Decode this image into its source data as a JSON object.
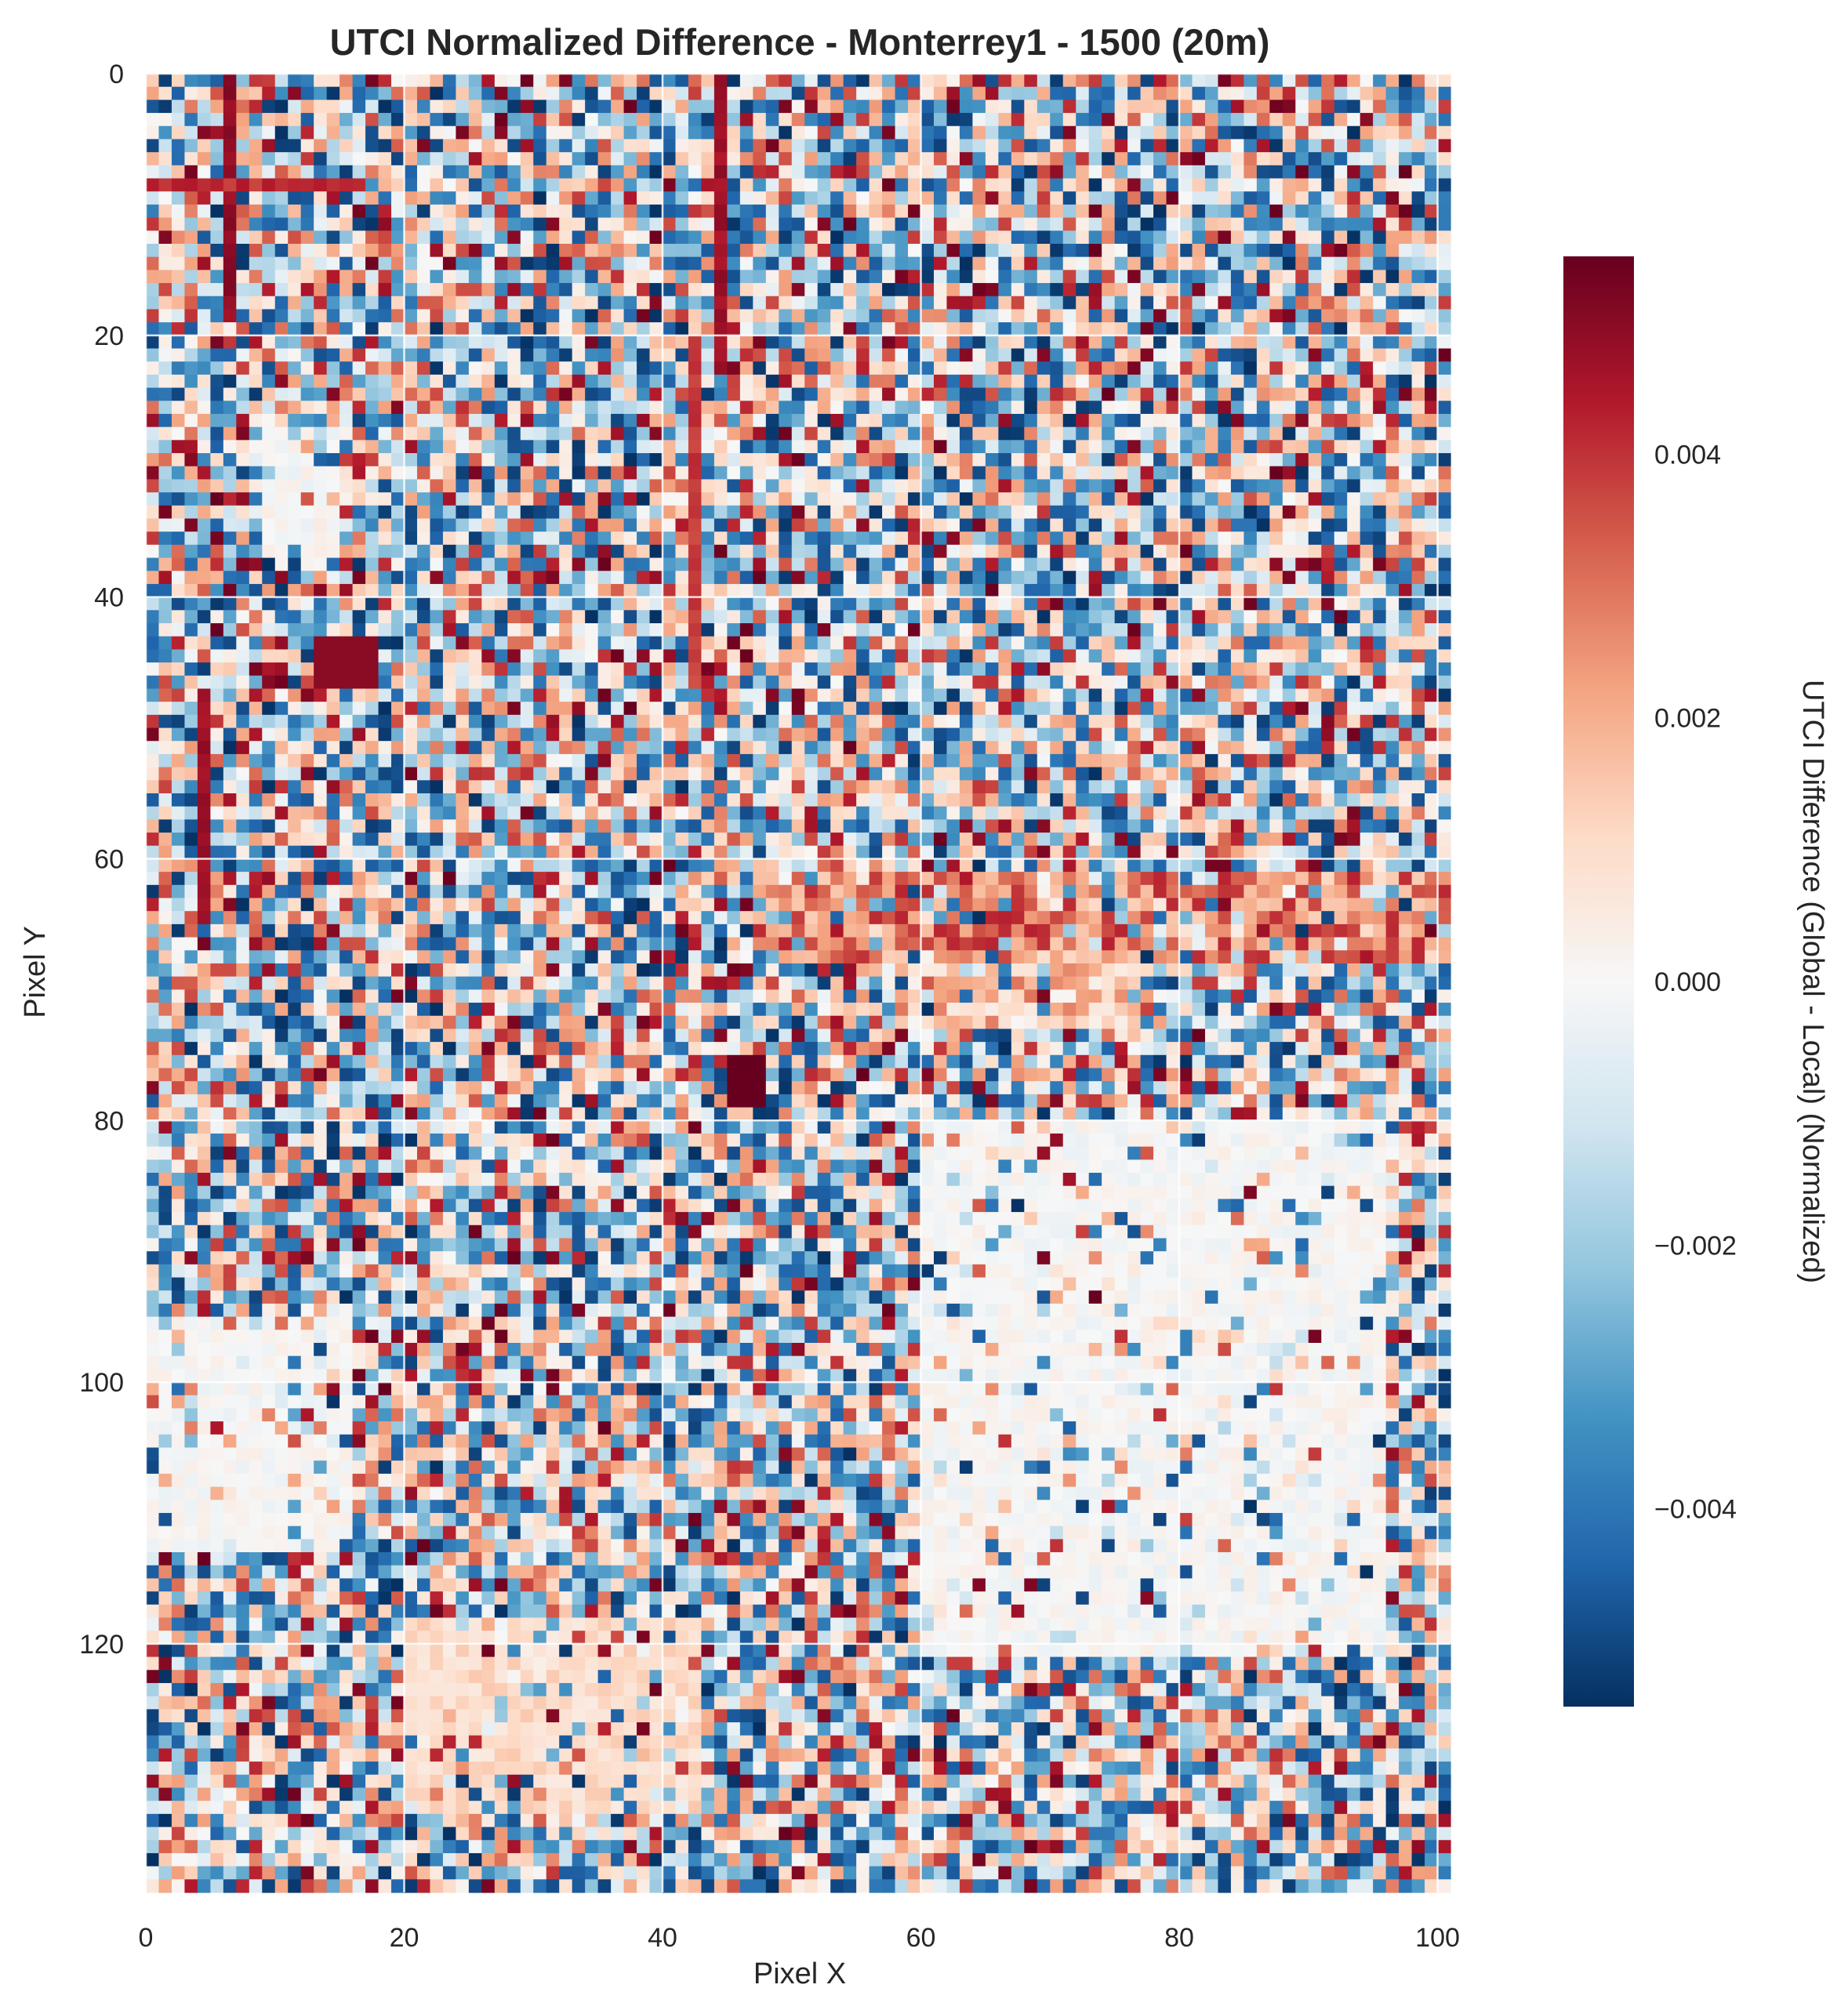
{
  "chart_data": {
    "type": "heatmap",
    "title": "UTCI Normalized Difference - Monterrey1 - 1500 (20m)",
    "xlabel": "Pixel X",
    "ylabel": "Pixel Y",
    "xlim": [
      0,
      101
    ],
    "ylim": [
      139,
      0
    ],
    "grid": true,
    "x_ticks": [
      "0",
      "20",
      "40",
      "60",
      "80",
      "100"
    ],
    "y_ticks": [
      "0",
      "20",
      "40",
      "60",
      "80",
      "100",
      "120"
    ],
    "x_tick_values": [
      0,
      20,
      40,
      60,
      80,
      100
    ],
    "y_tick_values": [
      0,
      20,
      40,
      60,
      80,
      100,
      120
    ],
    "colorbar": {
      "label": "UTCI Difference (Global - Local) (Normalized)",
      "colormap": "RdBu_r",
      "vmin": -0.0055,
      "vmax": 0.0055,
      "ticks": [
        "−0.004",
        "−0.002",
        "0.000",
        "0.002",
        "0.004"
      ],
      "tick_values": [
        -0.004,
        -0.002,
        0.0,
        0.002,
        0.004
      ],
      "colors": [
        "#053061",
        "#2166ac",
        "#4393c3",
        "#92c5de",
        "#d1e5f0",
        "#f7f7f7",
        "#fddbc7",
        "#f4a582",
        "#d6604d",
        "#b2182b",
        "#67001f"
      ]
    },
    "grid_size": {
      "cols": 101,
      "rows": 139
    },
    "features": [
      {
        "kind": "vline",
        "x": 6,
        "y0": 0,
        "y1": 18,
        "value": 0.0052
      },
      {
        "kind": "hline",
        "y": 8,
        "x0": 0,
        "x1": 16,
        "value": 0.0045
      },
      {
        "kind": "vline",
        "x": 44,
        "y0": 0,
        "y1": 22,
        "value": 0.005
      },
      {
        "kind": "vline",
        "x": 42,
        "y0": 20,
        "y1": 45,
        "value": 0.0042
      },
      {
        "kind": "vline",
        "x": 4,
        "y0": 47,
        "y1": 64,
        "value": 0.005
      },
      {
        "kind": "block",
        "x0": 13,
        "x1": 17,
        "y0": 43,
        "y1": 46,
        "value": 0.005
      },
      {
        "kind": "block",
        "x0": 45,
        "x1": 47,
        "y0": 75,
        "y1": 78,
        "value": 0.0055
      },
      {
        "kind": "band",
        "x0": 47,
        "x1": 100,
        "y0": 61,
        "y1": 67,
        "value": 0.0025
      },
      {
        "kind": "band",
        "x0": 58,
        "x1": 76,
        "y0": 67,
        "y1": 72,
        "value": 0.0012
      },
      {
        "kind": "calm",
        "x0": 60,
        "x1": 95,
        "y0": 80,
        "y1": 120,
        "value": 0.0
      },
      {
        "kind": "calm",
        "x0": 0,
        "x1": 15,
        "y0": 95,
        "y1": 112,
        "value": 0.0
      },
      {
        "kind": "warm",
        "x0": 20,
        "x1": 42,
        "y0": 118,
        "y1": 132,
        "value": 0.001
      },
      {
        "kind": "calm",
        "x0": 9,
        "x1": 14,
        "y0": 27,
        "y1": 37,
        "value": 0.0
      }
    ]
  }
}
